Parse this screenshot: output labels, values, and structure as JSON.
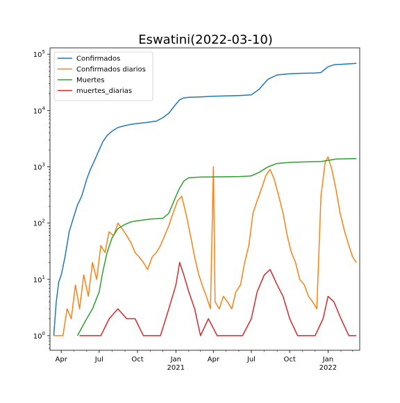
{
  "chart_data": {
    "type": "line",
    "title": "Eswatini(2022-03-10)",
    "xlabel": "",
    "ylabel": "",
    "y_scale": "log",
    "ylim": [
      0.55,
      130000
    ],
    "xlim": [
      "2020-03-05",
      "2022-03-18"
    ],
    "grid": false,
    "legend_position": "top-left",
    "x_ticks": [
      {
        "date": "2020-04-01",
        "label": "Apr",
        "sublabel": ""
      },
      {
        "date": "2020-07-01",
        "label": "Jul",
        "sublabel": ""
      },
      {
        "date": "2020-10-01",
        "label": "Oct",
        "sublabel": ""
      },
      {
        "date": "2021-01-01",
        "label": "Jan",
        "sublabel": "2021"
      },
      {
        "date": "2021-04-01",
        "label": "Apr",
        "sublabel": ""
      },
      {
        "date": "2021-07-01",
        "label": "Jul",
        "sublabel": ""
      },
      {
        "date": "2021-10-01",
        "label": "Oct",
        "sublabel": ""
      },
      {
        "date": "2022-01-01",
        "label": "Jan",
        "sublabel": "2022"
      }
    ],
    "y_ticks": [
      {
        "value": 1,
        "base": "10",
        "exp": "0"
      },
      {
        "value": 10,
        "base": "10",
        "exp": "1"
      },
      {
        "value": 100,
        "base": "10",
        "exp": "2"
      },
      {
        "value": 1000,
        "base": "10",
        "exp": "3"
      },
      {
        "value": 10000,
        "base": "10",
        "exp": "4"
      },
      {
        "value": 100000,
        "base": "10",
        "exp": "5"
      }
    ],
    "series": [
      {
        "name": "Confirmados",
        "color": "#1f77b4",
        "x": [
          "2020-03-14",
          "2020-03-20",
          "2020-03-26",
          "2020-04-01",
          "2020-04-10",
          "2020-04-20",
          "2020-05-01",
          "2020-05-10",
          "2020-05-20",
          "2020-06-01",
          "2020-06-10",
          "2020-06-20",
          "2020-07-01",
          "2020-07-10",
          "2020-07-20",
          "2020-08-01",
          "2020-08-15",
          "2020-09-01",
          "2020-09-15",
          "2020-10-01",
          "2020-10-20",
          "2020-11-15",
          "2020-12-01",
          "2020-12-15",
          "2021-01-01",
          "2021-01-10",
          "2021-01-20",
          "2021-02-01",
          "2021-03-01",
          "2021-04-01",
          "2021-05-01",
          "2021-06-01",
          "2021-07-01",
          "2021-07-20",
          "2021-08-10",
          "2021-09-01",
          "2021-10-01",
          "2021-11-01",
          "2021-12-01",
          "2021-12-15",
          "2022-01-01",
          "2022-01-15",
          "2022-03-10"
        ],
        "values": [
          1,
          4,
          9,
          12,
          25,
          70,
          130,
          210,
          300,
          600,
          900,
          1300,
          2000,
          2800,
          3600,
          4300,
          5000,
          5400,
          5700,
          5900,
          6100,
          6500,
          7500,
          9000,
          13000,
          15500,
          16800,
          17200,
          17500,
          18000,
          18200,
          18500,
          19000,
          24000,
          36000,
          43000,
          45000,
          46000,
          46500,
          47500,
          60000,
          65000,
          69000
        ]
      },
      {
        "name": "Confirmados diarios",
        "color": "#ff7f0e",
        "x": [
          "2020-03-14",
          "2020-03-25",
          "2020-04-05",
          "2020-04-15",
          "2020-04-25",
          "2020-05-05",
          "2020-05-15",
          "2020-05-25",
          "2020-06-05",
          "2020-06-15",
          "2020-06-25",
          "2020-07-05",
          "2020-07-15",
          "2020-07-25",
          "2020-08-05",
          "2020-08-15",
          "2020-08-25",
          "2020-09-05",
          "2020-09-15",
          "2020-09-25",
          "2020-10-05",
          "2020-10-15",
          "2020-10-25",
          "2020-11-05",
          "2020-11-15",
          "2020-11-25",
          "2020-12-05",
          "2020-12-15",
          "2020-12-25",
          "2021-01-05",
          "2021-01-15",
          "2021-01-25",
          "2021-02-05",
          "2021-02-15",
          "2021-02-25",
          "2021-03-05",
          "2021-03-15",
          "2021-03-25",
          "2021-04-01",
          "2021-04-05",
          "2021-04-15",
          "2021-04-25",
          "2021-05-05",
          "2021-05-15",
          "2021-05-25",
          "2021-06-05",
          "2021-06-15",
          "2021-06-25",
          "2021-07-05",
          "2021-07-15",
          "2021-07-25",
          "2021-08-05",
          "2021-08-15",
          "2021-08-25",
          "2021-09-05",
          "2021-09-15",
          "2021-09-25",
          "2021-10-05",
          "2021-10-15",
          "2021-10-25",
          "2021-11-05",
          "2021-11-15",
          "2021-11-25",
          "2021-12-05",
          "2021-12-15",
          "2021-12-25",
          "2022-01-01",
          "2022-01-10",
          "2022-01-20",
          "2022-01-30",
          "2022-02-10",
          "2022-02-20",
          "2022-03-01",
          "2022-03-10"
        ],
        "values": [
          1,
          1,
          1,
          3,
          2,
          8,
          3,
          12,
          5,
          20,
          10,
          40,
          30,
          70,
          60,
          100,
          80,
          60,
          45,
          30,
          25,
          20,
          15,
          25,
          30,
          40,
          60,
          90,
          150,
          250,
          300,
          150,
          60,
          25,
          12,
          8,
          5,
          3,
          1000,
          4,
          3,
          5,
          4,
          3,
          6,
          8,
          20,
          40,
          150,
          250,
          400,
          700,
          900,
          600,
          300,
          150,
          60,
          30,
          20,
          10,
          8,
          5,
          4,
          3,
          300,
          1200,
          1500,
          900,
          400,
          150,
          70,
          40,
          25,
          20
        ]
      },
      {
        "name": "Muertes",
        "color": "#2ca02c",
        "x": [
          "2020-05-10",
          "2020-06-01",
          "2020-06-15",
          "2020-07-01",
          "2020-07-10",
          "2020-07-20",
          "2020-08-01",
          "2020-08-15",
          "2020-09-01",
          "2020-09-15",
          "2020-10-01",
          "2020-11-01",
          "2020-12-01",
          "2020-12-15",
          "2021-01-01",
          "2021-01-10",
          "2021-01-20",
          "2021-02-01",
          "2021-03-01",
          "2021-06-01",
          "2021-07-01",
          "2021-07-20",
          "2021-08-10",
          "2021-09-01",
          "2021-10-01",
          "2021-11-01",
          "2021-12-15",
          "2022-01-01",
          "2022-01-20",
          "2022-03-10"
        ],
        "values": [
          1,
          2,
          3,
          6,
          14,
          30,
          55,
          80,
          95,
          105,
          110,
          118,
          122,
          150,
          300,
          420,
          560,
          640,
          660,
          670,
          690,
          800,
          1000,
          1150,
          1200,
          1220,
          1240,
          1300,
          1380,
          1400
        ]
      },
      {
        "name": "muertes_diarias",
        "color": "#d62728",
        "x": [
          "2020-05-15",
          "2020-06-10",
          "2020-07-05",
          "2020-07-25",
          "2020-08-15",
          "2020-09-05",
          "2020-09-25",
          "2020-10-15",
          "2020-11-05",
          "2020-11-25",
          "2020-12-15",
          "2021-01-01",
          "2021-01-10",
          "2021-01-20",
          "2021-02-01",
          "2021-02-15",
          "2021-03-01",
          "2021-03-20",
          "2021-04-10",
          "2021-05-01",
          "2021-05-20",
          "2021-06-10",
          "2021-07-01",
          "2021-07-15",
          "2021-08-01",
          "2021-08-15",
          "2021-09-01",
          "2021-09-15",
          "2021-10-01",
          "2021-10-20",
          "2021-11-10",
          "2021-12-01",
          "2021-12-20",
          "2022-01-01",
          "2022-01-15",
          "2022-02-01",
          "2022-02-20",
          "2022-03-10"
        ],
        "values": [
          1,
          1,
          1,
          2,
          3,
          2,
          2,
          1,
          1,
          1,
          3,
          8,
          20,
          12,
          6,
          3,
          1,
          2,
          1,
          1,
          1,
          1,
          2,
          6,
          12,
          15,
          8,
          5,
          2,
          1,
          1,
          1,
          2,
          5,
          4,
          2,
          1,
          1
        ]
      }
    ]
  }
}
